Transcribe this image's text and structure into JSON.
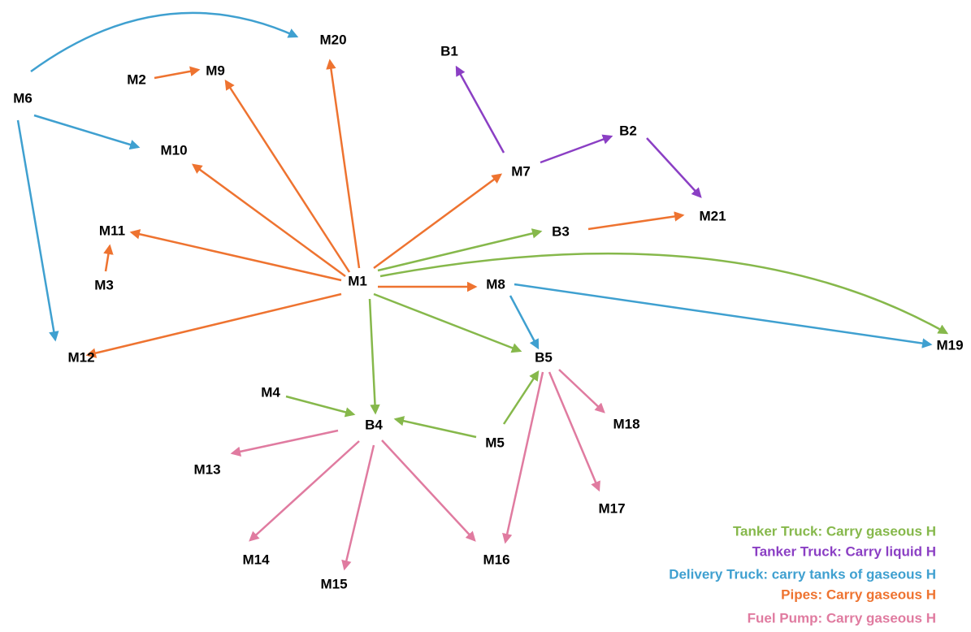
{
  "nodes": [
    {
      "label": "M6"
    },
    {
      "label": "M2"
    },
    {
      "label": "M9"
    },
    {
      "label": "M20"
    },
    {
      "label": "B1"
    },
    {
      "label": "M10"
    },
    {
      "label": "B2"
    },
    {
      "label": "M7"
    },
    {
      "label": "M21"
    },
    {
      "label": "M11"
    },
    {
      "label": "B3"
    },
    {
      "label": "M3"
    },
    {
      "label": "M1"
    },
    {
      "label": "M8"
    },
    {
      "label": "M12"
    },
    {
      "label": "B5"
    },
    {
      "label": "M19"
    },
    {
      "label": "M4"
    },
    {
      "label": "B4"
    },
    {
      "label": "M5"
    },
    {
      "label": "M18"
    },
    {
      "label": "M13"
    },
    {
      "label": "M17"
    },
    {
      "label": "M14"
    },
    {
      "label": "M16"
    },
    {
      "label": "M15"
    }
  ],
  "legend": [
    {
      "label": "Tanker Truck: Carry gaseous H",
      "color": "#86b84b"
    },
    {
      "label": "Tanker Truck: Carry liquid H",
      "color": "#8b3fc4"
    },
    {
      "label": "Delivery Truck: carry tanks of gaseous H",
      "color": "#3fa0d0"
    },
    {
      "label": "Pipes: Carry gaseous H",
      "color": "#ee7330"
    },
    {
      "label": "Fuel Pump: Carry gaseous H",
      "color": "#e07ba0"
    }
  ]
}
